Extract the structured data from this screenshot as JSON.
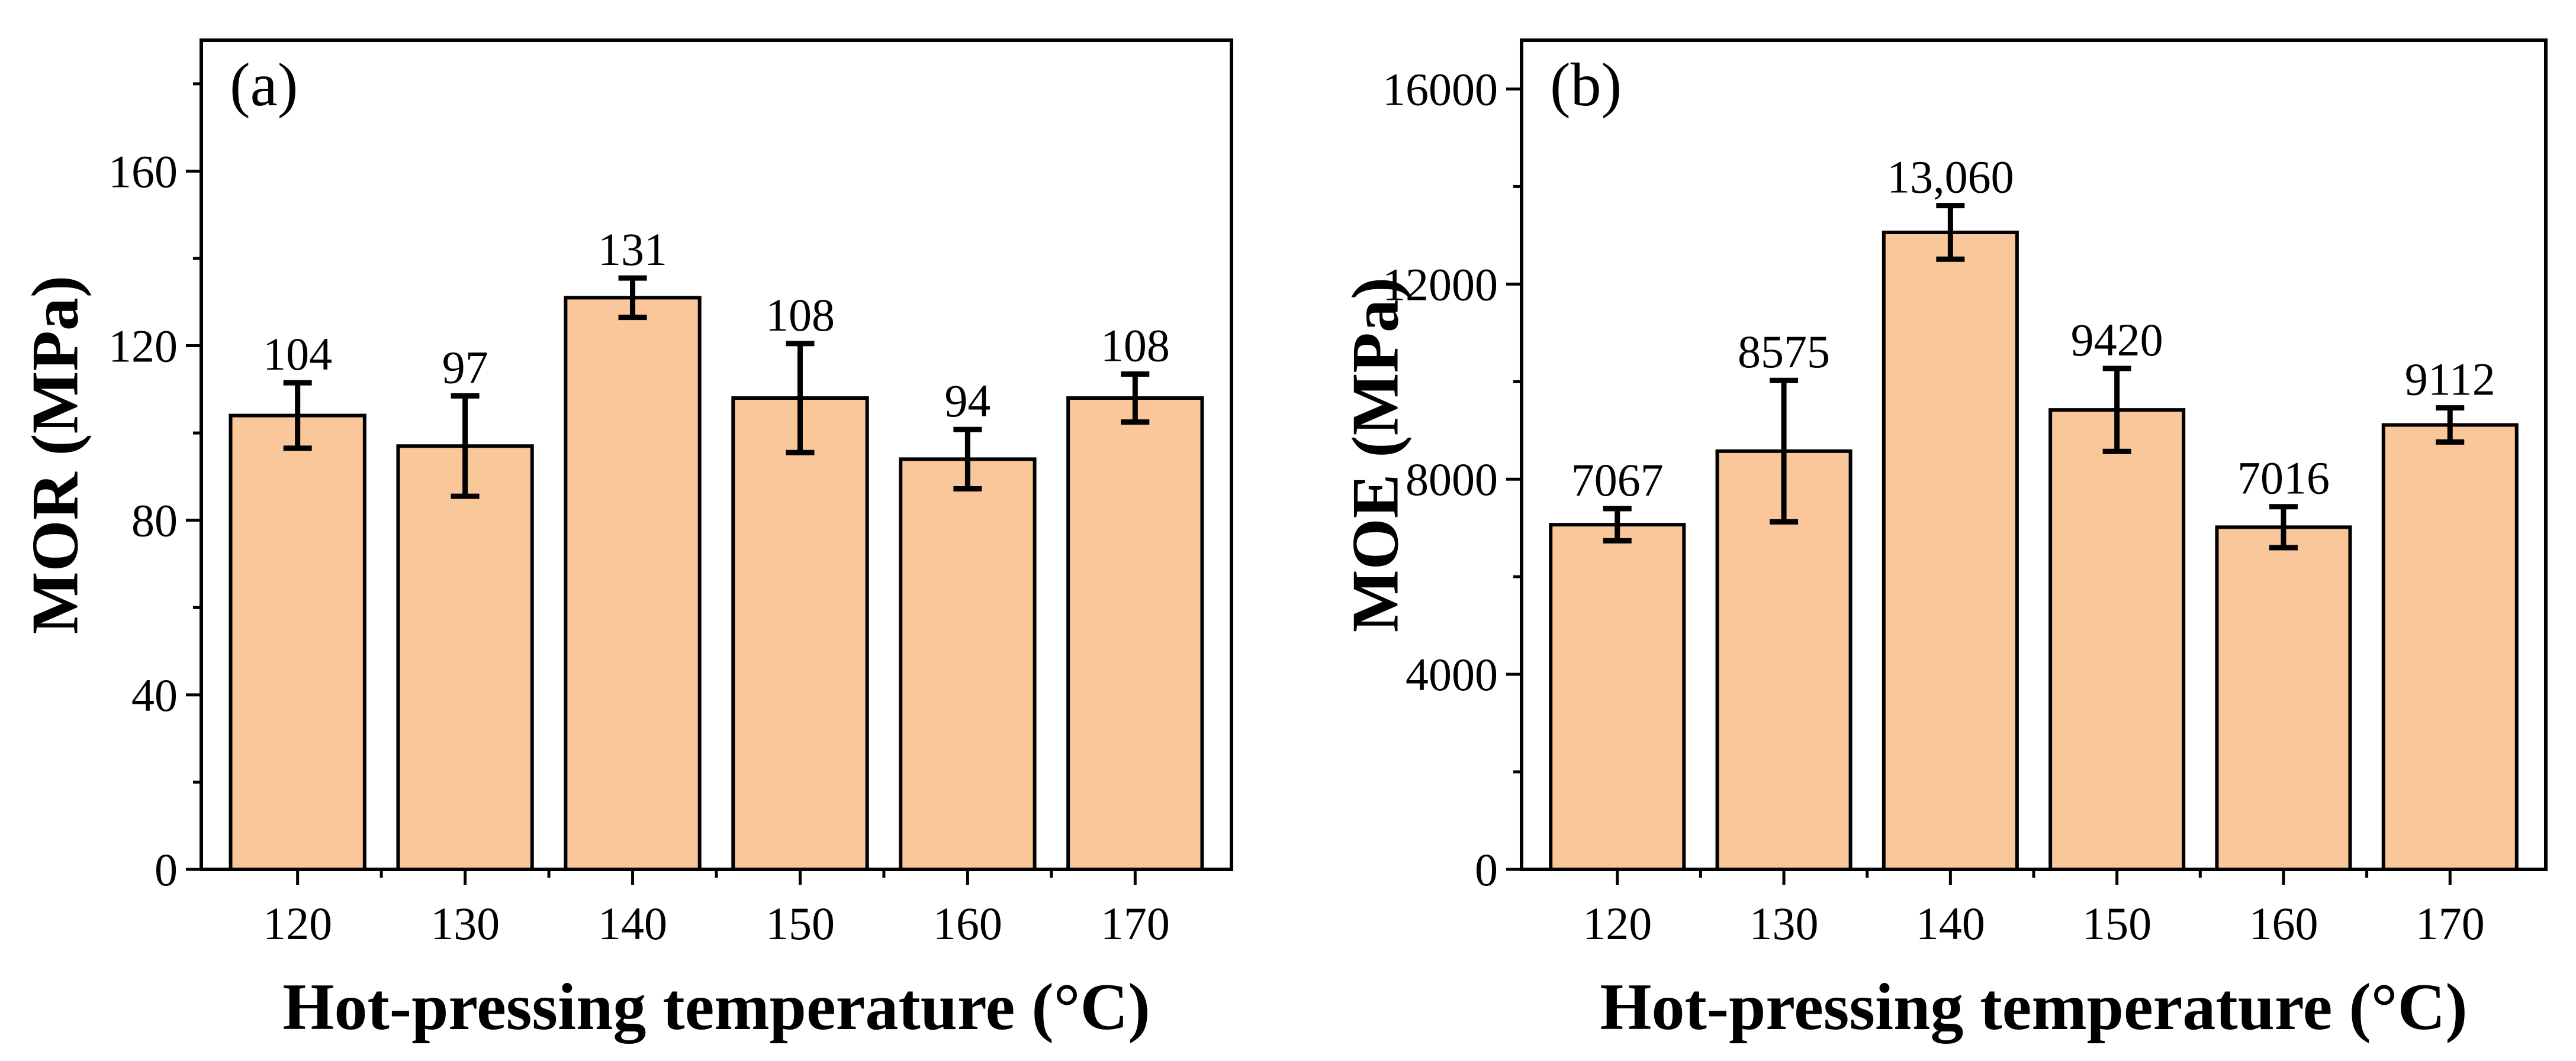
{
  "chart_data": [
    {
      "panel_label": "(a)",
      "type": "bar",
      "categories": [
        "120",
        "130",
        "140",
        "150",
        "160",
        "170"
      ],
      "values": [
        104,
        97,
        131,
        108,
        94,
        108
      ],
      "errors": [
        7.5,
        11.5,
        4.5,
        12.5,
        6.8,
        5.5
      ],
      "data_labels": [
        "104",
        "97",
        "131",
        "108",
        "94",
        "108"
      ],
      "xlabel": "Hot-pressing temperature (°C)",
      "ylabel": "MOR (MPa)",
      "ylim": [
        0,
        190
      ],
      "yticks": [
        0,
        40,
        80,
        120,
        160
      ],
      "ytick_labels": [
        "0",
        "40",
        "80",
        "120",
        "160"
      ],
      "bar_color": "#F9C79A",
      "grid": false
    },
    {
      "panel_label": "(b)",
      "type": "bar",
      "categories": [
        "120",
        "130",
        "140",
        "150",
        "160",
        "170"
      ],
      "values": [
        7067,
        8575,
        13060,
        9420,
        7016,
        9112
      ],
      "errors": [
        330,
        1450,
        550,
        850,
        420,
        350
      ],
      "data_labels": [
        "7067",
        "8575",
        "13,060",
        "9420",
        "7016",
        "9112"
      ],
      "xlabel": "Hot-pressing temperature (°C)",
      "ylabel": "MOE (MPa)",
      "ylim": [
        0,
        17000
      ],
      "yticks": [
        0,
        4000,
        8000,
        12000,
        16000
      ],
      "ytick_labels": [
        "0",
        "4000",
        "8000",
        "12000",
        "16000"
      ],
      "bar_color": "#F9C79A",
      "grid": false
    }
  ]
}
